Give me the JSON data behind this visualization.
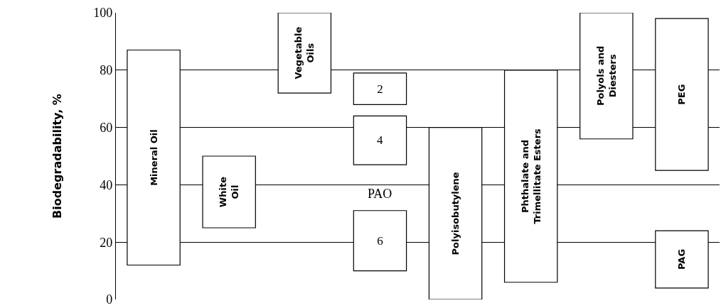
{
  "chart_data": {
    "type": "bar",
    "ylabel": "Biodegradability, %",
    "categories": [
      null,
      null,
      null,
      null,
      null,
      null,
      null,
      null
    ],
    "series": [
      {
        "name": "Mineral Oil",
        "color": "#ffffff",
        "base": [
          12,
          null,
          null,
          null,
          null,
          null,
          null,
          null
        ],
        "values": [
          75,
          null,
          null,
          null,
          null,
          null,
          null,
          null
        ]
      },
      {
        "name": "White Oil",
        "color": "#ffffff",
        "base": [
          null,
          25,
          null,
          null,
          null,
          null,
          null,
          null
        ],
        "values": [
          null,
          25,
          null,
          null,
          null,
          null,
          null,
          null
        ]
      },
      {
        "name": "Vegetable Oils",
        "color": "#ffffff",
        "base": [
          null,
          null,
          72,
          null,
          null,
          null,
          null,
          null
        ],
        "values": [
          null,
          null,
          28,
          null,
          null,
          null,
          null,
          null
        ]
      },
      {
        "name": "2",
        "color": "#ffffff",
        "base": [
          null,
          null,
          null,
          68,
          null,
          null,
          null,
          null
        ],
        "values": [
          null,
          null,
          null,
          11,
          null,
          null,
          null,
          null
        ]
      },
      {
        "name": "4",
        "color": "#ffffff",
        "base": [
          null,
          null,
          null,
          47,
          null,
          null,
          null,
          null
        ],
        "values": [
          null,
          null,
          null,
          17,
          null,
          null,
          null,
          null
        ]
      },
      {
        "name": "6",
        "color": "#ffffff",
        "base": [
          null,
          null,
          null,
          10,
          null,
          null,
          null,
          null
        ],
        "values": [
          null,
          null,
          null,
          21,
          null,
          null,
          null,
          null
        ]
      },
      {
        "name": "Polyisobutylene",
        "color": "#ffffff",
        "base": [
          null,
          null,
          null,
          null,
          0,
          null,
          null,
          null
        ],
        "values": [
          null,
          null,
          null,
          null,
          60,
          null,
          null,
          null
        ]
      },
      {
        "name": "Phthalate and Trimellitate Esters",
        "color": "#ffffff",
        "base": [
          null,
          null,
          null,
          null,
          null,
          6,
          null,
          null
        ],
        "values": [
          null,
          null,
          null,
          null,
          null,
          74,
          null,
          null
        ]
      },
      {
        "name": "Polyols and Diesters",
        "color": "#ffffff",
        "base": [
          null,
          null,
          null,
          null,
          null,
          null,
          56,
          null
        ],
        "values": [
          null,
          null,
          null,
          null,
          null,
          null,
          44,
          null
        ]
      },
      {
        "name": "PEG",
        "color": "#ffffff",
        "base": [
          null,
          null,
          null,
          null,
          null,
          null,
          null,
          45
        ],
        "values": [
          null,
          null,
          null,
          null,
          null,
          null,
          null,
          53
        ]
      },
      {
        "name": "PAG",
        "color": "#ffffff",
        "base": [
          null,
          null,
          null,
          null,
          null,
          null,
          null,
          4
        ],
        "values": [
          null,
          null,
          null,
          null,
          null,
          null,
          null,
          20
        ]
      }
    ],
    "annotations": [
      {
        "text": "PAO",
        "y": 37
      }
    ],
    "ylim": [
      0,
      100
    ],
    "yticks": [
      0,
      20,
      40,
      60,
      80,
      100
    ],
    "grid": "y",
    "legend": false,
    "tick_labels": "y"
  }
}
